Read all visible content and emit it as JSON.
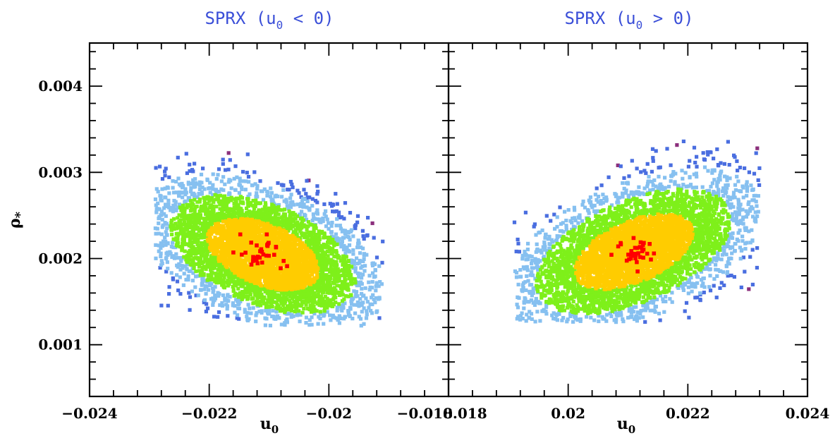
{
  "chart_data": [
    {
      "type": "scatter",
      "title": "SPRX (u₀ < 0)",
      "title_text": "SPRX (u",
      "title_sub": "0",
      "title_rest": " < 0)",
      "xlabel": "u",
      "xlabel_sub": "0",
      "ylabel": "ρ",
      "ylabel_sub": "*",
      "xlim": [
        -0.024,
        -0.018
      ],
      "ylim": [
        0.0004,
        0.0045
      ],
      "xticks": [
        "−0.024",
        "−0.022",
        "−0.02",
        "−0.018"
      ],
      "xtick_values": [
        -0.024,
        -0.022,
        -0.02,
        -0.018
      ],
      "yticks": [
        "0.004",
        "0.003",
        "0.002",
        "0.001"
      ],
      "ytick_values": [
        0.004,
        0.003,
        0.002,
        0.001
      ],
      "distribution": {
        "center": [
          -0.0211,
          0.00205
        ],
        "tilt": "negative",
        "correlation": -0.45,
        "sigma_x": 0.00085,
        "sigma_y": 0.00038,
        "x_extent": [
          -0.0229,
          -0.0191
        ],
        "y_extent": [
          0.00122,
          0.00356
        ]
      },
      "series": [
        {
          "name": "",
          "color": "#8b2f7c",
          "level": "outliers"
        },
        {
          "name": "",
          "color": "#4a6ee0",
          "level": "3 sigma"
        },
        {
          "name": "",
          "color": "#86c0f0",
          "level": "2 sigma"
        },
        {
          "name": "",
          "color": "#7ef01a",
          "level": "1 sigma"
        },
        {
          "name": "",
          "color": "#ffcc00",
          "level": "core"
        },
        {
          "name": "",
          "color": "#ff0000",
          "level": "best fits"
        }
      ]
    },
    {
      "type": "scatter",
      "title": "SPRX (u₀ > 0)",
      "title_text": "SPRX (u",
      "title_sub": "0",
      "title_rest": " > 0)",
      "xlabel": "u",
      "xlabel_sub": "0",
      "xlim": [
        0.018,
        0.024
      ],
      "ylim": [
        0.0004,
        0.0045
      ],
      "xticks": [
        "0.018",
        "0.02",
        "0.022",
        "0.024"
      ],
      "xtick_values": [
        0.018,
        0.02,
        0.022,
        0.024
      ],
      "yticks": [],
      "ytick_values": [
        0.004,
        0.003,
        0.002,
        0.001
      ],
      "distribution": {
        "center": [
          0.0211,
          0.00208
        ],
        "tilt": "positive",
        "correlation": 0.5,
        "sigma_x": 0.0009,
        "sigma_y": 0.0004,
        "x_extent": [
          0.0191,
          0.0232
        ],
        "y_extent": [
          0.00126,
          0.00356
        ]
      },
      "series": [
        {
          "name": "",
          "color": "#8b2f7c",
          "level": "outliers"
        },
        {
          "name": "",
          "color": "#4a6ee0",
          "level": "3 sigma"
        },
        {
          "name": "",
          "color": "#86c0f0",
          "level": "2 sigma"
        },
        {
          "name": "",
          "color": "#7ef01a",
          "level": "1 sigma"
        },
        {
          "name": "",
          "color": "#ffcc00",
          "level": "core"
        },
        {
          "name": "",
          "color": "#ff0000",
          "level": "best fits"
        }
      ]
    }
  ]
}
